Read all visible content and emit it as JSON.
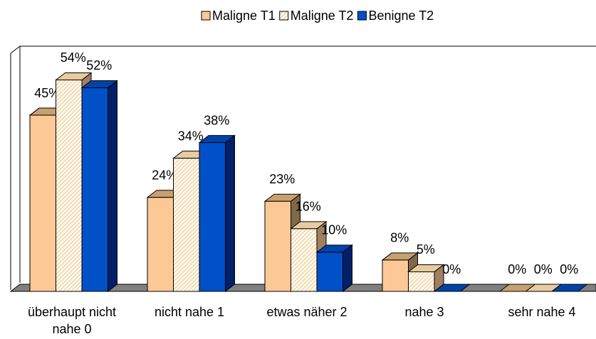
{
  "chart_data": {
    "type": "bar3d",
    "categories": [
      "überhaupt nicht nahe 0",
      "nicht nahe 1",
      "etwas näher 2",
      "nahe 3",
      "sehr nahe 4"
    ],
    "series": [
      {
        "name": "Maligne T1",
        "color": "#fcc896",
        "values": [
          45,
          24,
          23,
          8,
          0
        ],
        "value_labels": [
          "45%",
          "24%",
          "23%",
          "8%",
          "0%"
        ]
      },
      {
        "name": "Maligne T2",
        "color": "#fde6c0",
        "pattern": "hatched",
        "values": [
          54,
          34,
          16,
          5,
          0
        ],
        "value_labels": [
          "54%",
          "34%",
          "16%",
          "5%",
          "0%"
        ]
      },
      {
        "name": "Benigne T2",
        "color": "#0050c8",
        "values": [
          52,
          38,
          10,
          0,
          0
        ],
        "value_labels": [
          "52%",
          "38%",
          "10%",
          "0%",
          "0%"
        ]
      }
    ],
    "legend": "top"
  }
}
